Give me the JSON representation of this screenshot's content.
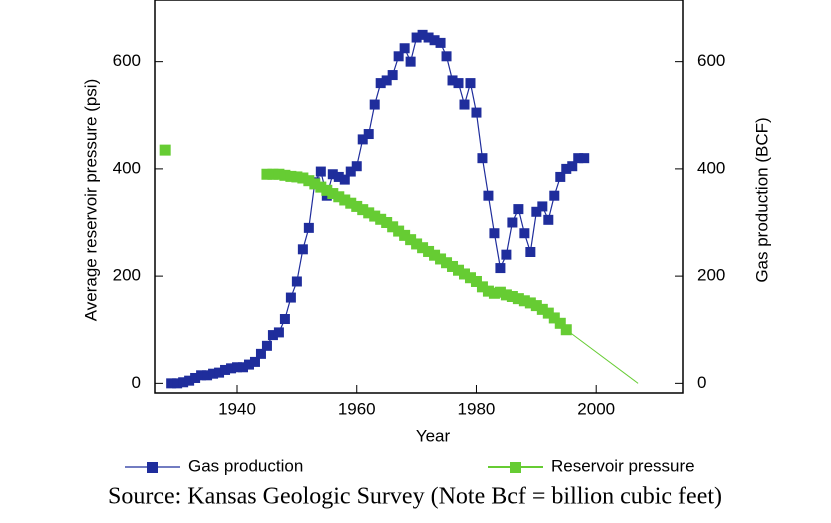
{
  "chart_data": {
    "type": "line",
    "x_label": "Year",
    "y_label": "Average reservoir pressure (psi)",
    "y2_label": "Gas production (BCF)",
    "source": "Source: Kansas Geologic Survey (Note Bcf = billion cubic feet)",
    "xlim": [
      1926.3,
      2014.5
    ],
    "xticks": [
      1940,
      1960,
      1980,
      2000
    ],
    "ylim": [
      -18,
      715
    ],
    "yticks": [
      0,
      200,
      400,
      600
    ],
    "y2lim": [
      -18,
      715
    ],
    "y2ticks": [
      0,
      200,
      400,
      600
    ],
    "legend": "bottom",
    "series": [
      {
        "name": "Gas production",
        "color": "#1f2d9c",
        "axis": "y2",
        "markers": true,
        "line_width": 1.2,
        "x": [
          1929,
          1930,
          1931,
          1932,
          1933,
          1934,
          1935,
          1936,
          1937,
          1938,
          1939,
          1940,
          1941,
          1942,
          1943,
          1944,
          1945,
          1946,
          1947,
          1948,
          1949,
          1950,
          1951,
          1952,
          1953,
          1954,
          1955,
          1956,
          1957,
          1958,
          1959,
          1960,
          1961,
          1962,
          1963,
          1964,
          1965,
          1966,
          1967,
          1968,
          1969,
          1970,
          1971,
          1972,
          1973,
          1974,
          1975,
          1976,
          1977,
          1978,
          1979,
          1980,
          1981,
          1982,
          1983,
          1984,
          1985,
          1986,
          1987,
          1988,
          1989,
          1990,
          1991,
          1992,
          1993,
          1994,
          1995,
          1996,
          1997,
          1998
        ],
        "values": [
          0,
          0,
          2,
          5,
          10,
          15,
          15,
          18,
          20,
          25,
          28,
          30,
          30,
          35,
          40,
          55,
          70,
          90,
          95,
          120,
          160,
          190,
          250,
          290,
          375,
          395,
          350,
          390,
          385,
          380,
          395,
          405,
          455,
          465,
          520,
          560,
          565,
          575,
          610,
          625,
          600,
          645,
          650,
          645,
          640,
          635,
          610,
          565,
          560,
          520,
          560,
          505,
          420,
          350,
          280,
          215,
          240,
          300,
          325,
          280,
          245,
          320,
          330,
          305,
          350,
          385,
          400,
          405,
          420,
          420
        ]
      },
      {
        "name": "Reservoir pressure",
        "color": "#66cc33",
        "axis": "y",
        "markers": true,
        "line_width": 2,
        "x": [
          1928,
          1929,
          1945,
          1946,
          1947,
          1948,
          1949,
          1950,
          1951,
          1952,
          1953,
          1954,
          1955,
          1956,
          1957,
          1958,
          1959,
          1960,
          1961,
          1962,
          1963,
          1964,
          1965,
          1966,
          1967,
          1968,
          1969,
          1970,
          1971,
          1972,
          1973,
          1974,
          1975,
          1976,
          1977,
          1978,
          1979,
          1980,
          1981,
          1982,
          1983,
          1984,
          1985,
          1986,
          1987,
          1988,
          1989,
          1990,
          1991,
          1992,
          1993,
          1994,
          1995
        ],
        "values": [
          435,
          null,
          390,
          390,
          390,
          388,
          386,
          385,
          383,
          378,
          372,
          366,
          360,
          354,
          348,
          342,
          336,
          330,
          324,
          318,
          312,
          306,
          300,
          292,
          284,
          276,
          268,
          260,
          253,
          246,
          239,
          232,
          225,
          218,
          211,
          204,
          197,
          190,
          180,
          172,
          168,
          170,
          165,
          162,
          158,
          154,
          150,
          145,
          138,
          131,
          122,
          112,
          100
        ]
      },
      {
        "color": "#66cc33",
        "axis": "y",
        "markers": false,
        "line_width": 1,
        "x": [
          1995,
          2007
        ],
        "values": [
          100,
          0
        ]
      }
    ]
  }
}
